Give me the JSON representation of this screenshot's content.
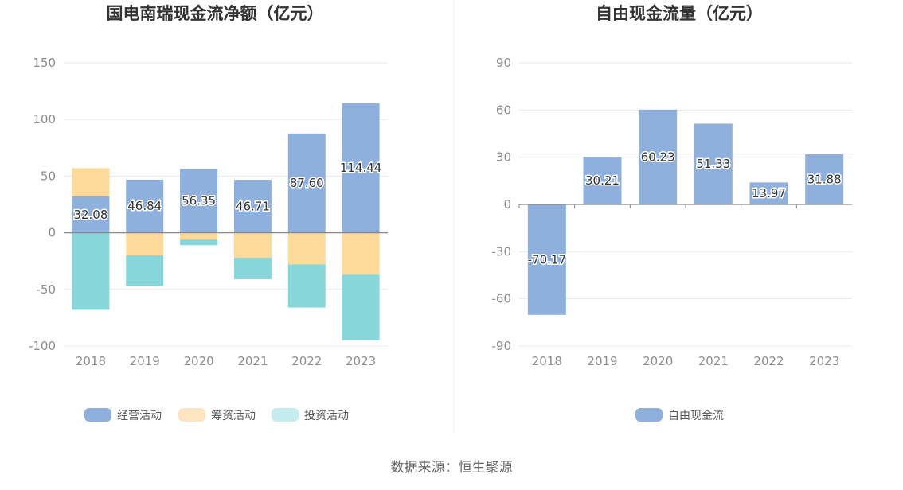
{
  "chart_data": [
    {
      "type": "bar",
      "stacked": true,
      "title": "国电南瑞现金流净额（亿元）",
      "categories": [
        "2018",
        "2019",
        "2020",
        "2021",
        "2022",
        "2023"
      ],
      "y_ticks": [
        "150",
        "100",
        "50",
        "0",
        "-50",
        "-100"
      ],
      "ylim": [
        -100,
        150
      ],
      "grid": true,
      "legend_position": "bottom",
      "series": [
        {
          "name": "经营活动",
          "color": "#8fb0dc",
          "values": [
            32.08,
            46.84,
            56.35,
            46.71,
            87.6,
            114.44
          ],
          "labels": [
            "32.08",
            "46.84",
            "56.35",
            "46.71",
            "87.60",
            "114.44"
          ]
        },
        {
          "name": "筹资活动",
          "color": "#fdd99a",
          "values": [
            25.0,
            -20.0,
            -6.0,
            -22.0,
            -28.0,
            -37.0
          ]
        },
        {
          "name": "投资活动",
          "color": "#87d6da",
          "values": [
            -68.0,
            -27.0,
            -5.0,
            -19.0,
            -38.0,
            -58.0
          ]
        }
      ]
    },
    {
      "type": "bar",
      "title": "自由现金流量（亿元）",
      "categories": [
        "2018",
        "2019",
        "2020",
        "2021",
        "2022",
        "2023"
      ],
      "y_ticks": [
        "90",
        "60",
        "30",
        "0",
        "-30",
        "-60",
        "-90"
      ],
      "ylim": [
        -90,
        90
      ],
      "grid": true,
      "legend_position": "bottom",
      "series": [
        {
          "name": "自由现金流",
          "color": "#8fb0dc",
          "values": [
            -70.17,
            30.21,
            60.23,
            51.33,
            13.97,
            31.88
          ],
          "labels": [
            "-70.17",
            "30.21",
            "60.23",
            "51.33",
            "13.97",
            "31.88"
          ]
        }
      ]
    }
  ],
  "legend_colors": [
    "#8fb0dc",
    "#fde5c0",
    "#c5ecee"
  ],
  "source": "数据来源：恒生聚源"
}
